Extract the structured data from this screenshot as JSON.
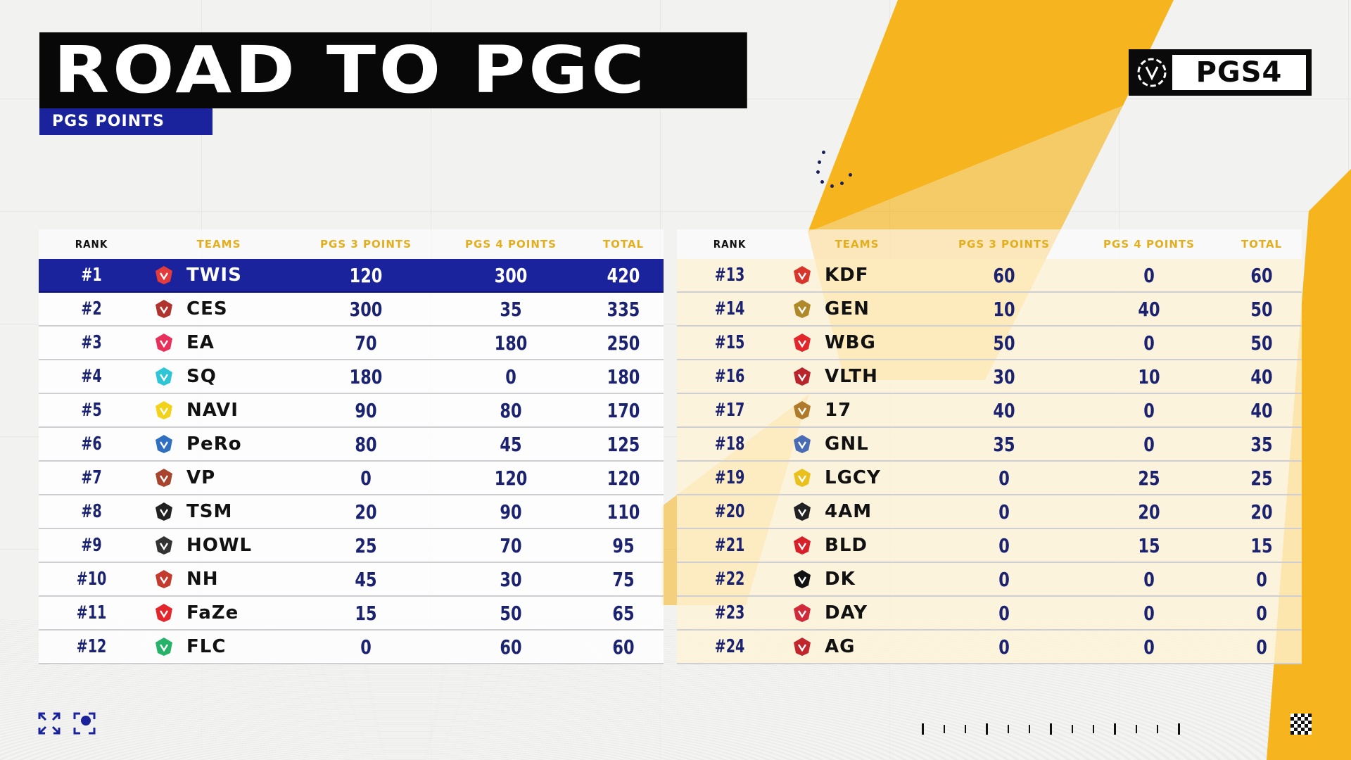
{
  "header": {
    "title": "ROAD TO PGC",
    "subtitle": "PGS POINTS"
  },
  "brand": {
    "mark": "PGS",
    "label": "PGS4"
  },
  "colors": {
    "navy": "#1a239b",
    "gold": "#f6b51e",
    "black": "#080808"
  },
  "columns": {
    "rank": "RANK",
    "teams": "TEAMS",
    "pgs3": "PGS 3 POINTS",
    "pgs4": "PGS 4 POINTS",
    "total": "TOTAL"
  },
  "standings": [
    {
      "rank": "#1",
      "team": "TWIS",
      "pgs3": "120",
      "pgs4": "300",
      "total": "420",
      "logo": "twis-logo",
      "color": "#e23b3b"
    },
    {
      "rank": "#2",
      "team": "CES",
      "pgs3": "300",
      "pgs4": "35",
      "total": "335",
      "logo": "ces-logo",
      "color": "#b1332e"
    },
    {
      "rank": "#3",
      "team": "EA",
      "pgs3": "70",
      "pgs4": "180",
      "total": "250",
      "logo": "ea-logo",
      "color": "#e8315a"
    },
    {
      "rank": "#4",
      "team": "SQ",
      "pgs3": "180",
      "pgs4": "0",
      "total": "180",
      "logo": "sq-logo",
      "color": "#2ec5d6"
    },
    {
      "rank": "#5",
      "team": "NAVI",
      "pgs3": "90",
      "pgs4": "80",
      "total": "170",
      "logo": "navi-logo",
      "color": "#f2d21a"
    },
    {
      "rank": "#6",
      "team": "PeRo",
      "pgs3": "80",
      "pgs4": "45",
      "total": "125",
      "logo": "pero-logo",
      "color": "#2f6fbf"
    },
    {
      "rank": "#7",
      "team": "VP",
      "pgs3": "0",
      "pgs4": "120",
      "total": "120",
      "logo": "vp-logo",
      "color": "#a8432e"
    },
    {
      "rank": "#8",
      "team": "TSM",
      "pgs3": "20",
      "pgs4": "90",
      "total": "110",
      "logo": "tsm-logo",
      "color": "#222222"
    },
    {
      "rank": "#9",
      "team": "HOWL",
      "pgs3": "25",
      "pgs4": "70",
      "total": "95",
      "logo": "howl-logo",
      "color": "#333333"
    },
    {
      "rank": "#10",
      "team": "NH",
      "pgs3": "45",
      "pgs4": "30",
      "total": "75",
      "logo": "nh-logo",
      "color": "#c33a2e"
    },
    {
      "rank": "#11",
      "team": "FaZe",
      "pgs3": "15",
      "pgs4": "50",
      "total": "65",
      "logo": "faze-logo",
      "color": "#e3262b"
    },
    {
      "rank": "#12",
      "team": "FLC",
      "pgs3": "0",
      "pgs4": "60",
      "total": "60",
      "logo": "flc-logo",
      "color": "#27b26a"
    },
    {
      "rank": "#13",
      "team": "KDF",
      "pgs3": "60",
      "pgs4": "0",
      "total": "60",
      "logo": "kdf-logo",
      "color": "#d8352c"
    },
    {
      "rank": "#14",
      "team": "GEN",
      "pgs3": "10",
      "pgs4": "40",
      "total": "50",
      "logo": "gen-logo",
      "color": "#b08a2a"
    },
    {
      "rank": "#15",
      "team": "WBG",
      "pgs3": "50",
      "pgs4": "0",
      "total": "50",
      "logo": "wbg-logo",
      "color": "#e2262a"
    },
    {
      "rank": "#16",
      "team": "VLTH",
      "pgs3": "30",
      "pgs4": "10",
      "total": "40",
      "logo": "vlth-logo",
      "color": "#b8262c"
    },
    {
      "rank": "#17",
      "team": "17",
      "pgs3": "40",
      "pgs4": "0",
      "total": "40",
      "logo": "17-logo",
      "color": "#b07a2b"
    },
    {
      "rank": "#18",
      "team": "GNL",
      "pgs3": "35",
      "pgs4": "0",
      "total": "35",
      "logo": "gnl-logo",
      "color": "#4a6cb5"
    },
    {
      "rank": "#19",
      "team": "LGCY",
      "pgs3": "0",
      "pgs4": "25",
      "total": "25",
      "logo": "lgcy-logo",
      "color": "#e9c01c"
    },
    {
      "rank": "#20",
      "team": "4AM",
      "pgs3": "0",
      "pgs4": "20",
      "total": "20",
      "logo": "4am-logo",
      "color": "#222222"
    },
    {
      "rank": "#21",
      "team": "BLD",
      "pgs3": "0",
      "pgs4": "15",
      "total": "15",
      "logo": "bld-logo",
      "color": "#d8202a"
    },
    {
      "rank": "#22",
      "team": "DK",
      "pgs3": "0",
      "pgs4": "0",
      "total": "0",
      "logo": "dk-logo",
      "color": "#111111"
    },
    {
      "rank": "#23",
      "team": "DAY",
      "pgs3": "0",
      "pgs4": "0",
      "total": "0",
      "logo": "day-logo",
      "color": "#d12a3a"
    },
    {
      "rank": "#24",
      "team": "AG",
      "pgs3": "0",
      "pgs4": "0",
      "total": "0",
      "logo": "ag-logo",
      "color": "#c0262b"
    }
  ],
  "footer": {
    "expand_icon": "expand-icon",
    "camera_icon": "camera-icon",
    "checker_icon": "checkered-flag-icon"
  }
}
